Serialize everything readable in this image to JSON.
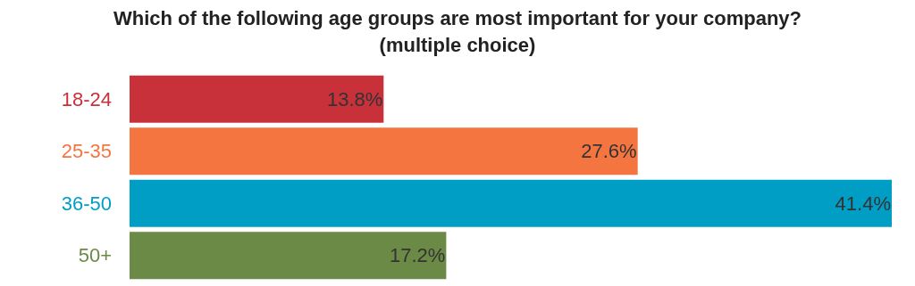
{
  "chart_data": {
    "type": "bar",
    "orientation": "horizontal",
    "title": "Which of the following age groups are most important for your company?",
    "subtitle": "(multiple choice)",
    "categories": [
      "18-24",
      "25-35",
      "36-50",
      "50+"
    ],
    "values": [
      13.8,
      27.6,
      41.4,
      17.2
    ],
    "value_labels": [
      "13.8%",
      "27.6%",
      "41.4%",
      "17.2%"
    ],
    "colors": [
      "#c8303a",
      "#f47540",
      "#009ec4",
      "#6a8a45"
    ]
  }
}
